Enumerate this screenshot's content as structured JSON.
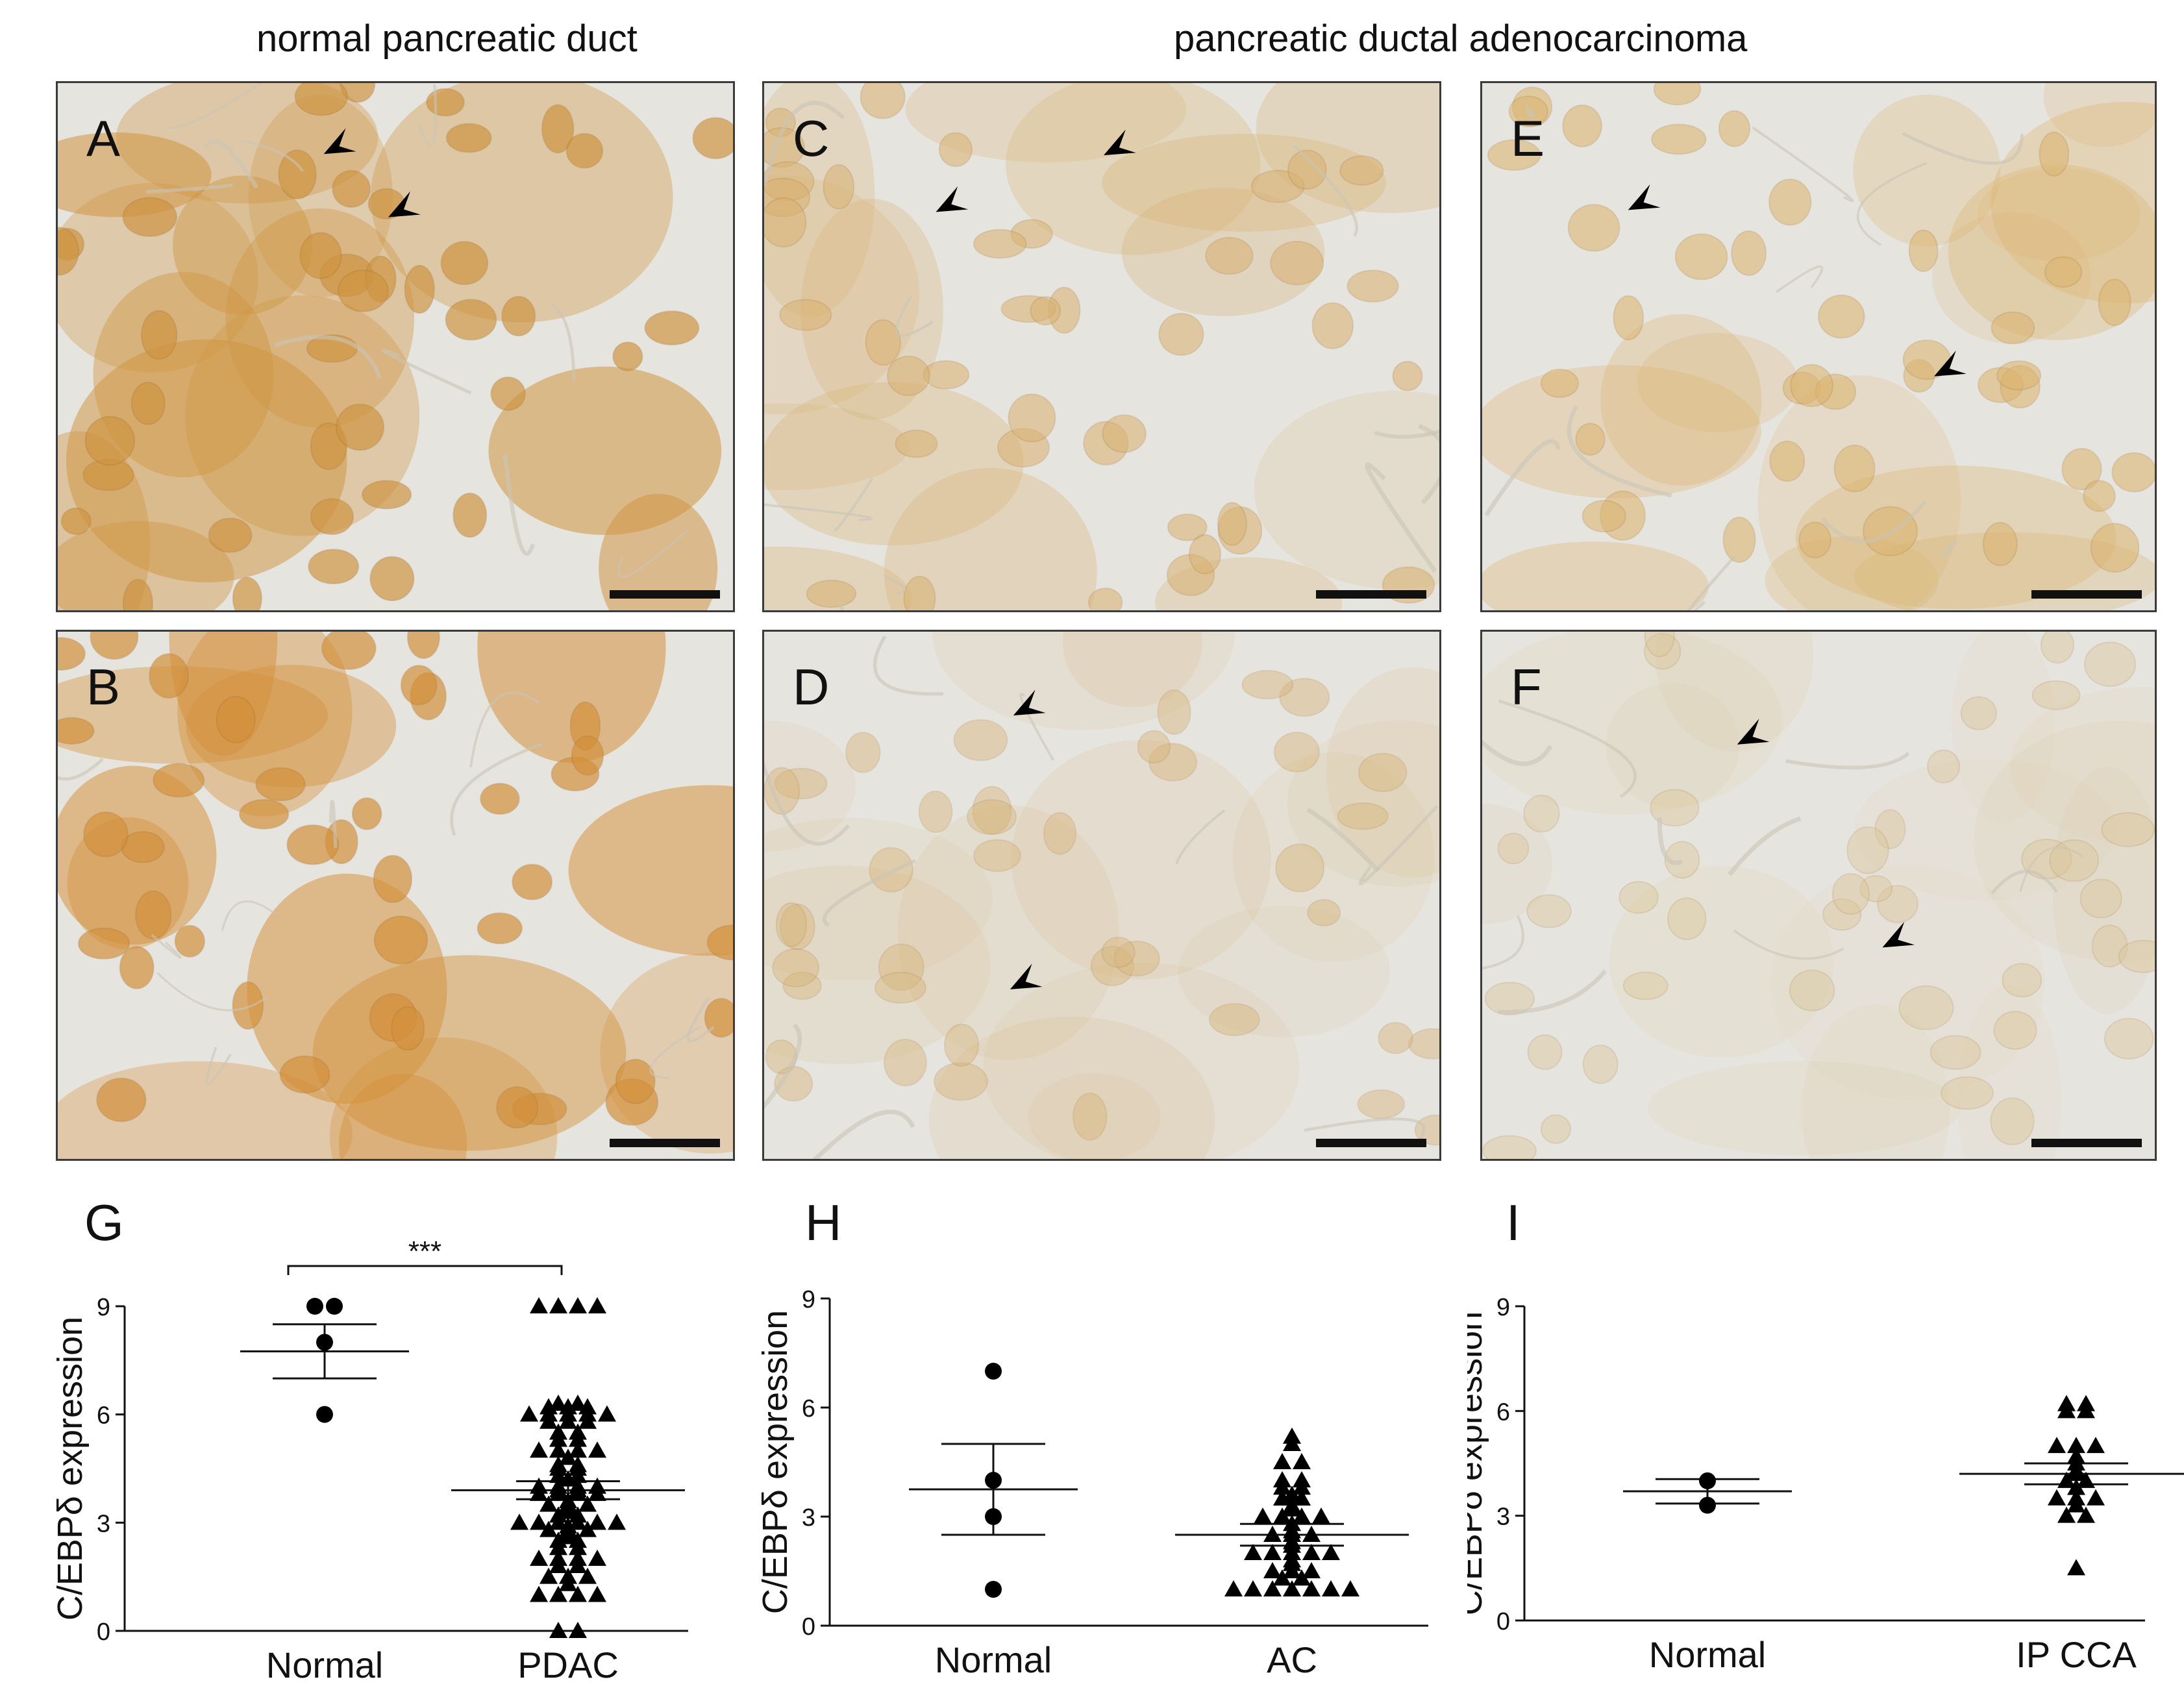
{
  "headers": {
    "normal": "normal pancreatic duct",
    "pdac": "pancreatic ductal adenocarcinoma"
  },
  "panels": [
    {
      "id": "a",
      "letter": "A",
      "stain": "strong",
      "tone": "#cf9440"
    },
    {
      "id": "b",
      "letter": "B",
      "stain": "strong",
      "tone": "#d4903a"
    },
    {
      "id": "c",
      "letter": "C",
      "stain": "moderate",
      "tone": "#d9b272"
    },
    {
      "id": "d",
      "letter": "D",
      "stain": "weak",
      "tone": "#d8b67c"
    },
    {
      "id": "e",
      "letter": "E",
      "stain": "moderate",
      "tone": "#dcb46e"
    },
    {
      "id": "f",
      "letter": "F",
      "stain": "weak",
      "tone": "#dcc79b"
    }
  ],
  "colors": {
    "background_tissue": "#e6e4df",
    "marker": "#000000",
    "scalebar": "#111111"
  },
  "chart_data": [
    {
      "panel": "G",
      "type": "scatter",
      "ylabel": "C/EBPδ expression",
      "ylim": [
        0,
        9
      ],
      "yticks": [
        "0",
        "3",
        "6",
        "9"
      ],
      "categories": [
        "Normal",
        "PDAC"
      ],
      "significance": "***",
      "series": [
        {
          "category": "Normal",
          "marker": "circle",
          "mean": 7.75,
          "sem_low": 7.0,
          "sem_high": 8.5,
          "values": [
            9,
            9,
            8,
            6
          ]
        },
        {
          "category": "PDAC",
          "marker": "triangle",
          "mean": 3.9,
          "sem_low": 3.65,
          "sem_high": 4.15,
          "values": [
            9,
            9,
            9,
            9,
            6.3,
            6.3,
            6.2,
            6.2,
            6.2,
            6,
            6,
            6,
            6,
            6,
            5.8,
            5.8,
            5.8,
            5.5,
            5.5,
            5.3,
            5.3,
            5,
            5,
            5,
            5,
            4.8,
            4.6,
            4.6,
            4.5,
            4.5,
            4.3,
            4.3,
            4.2,
            4,
            4,
            4,
            4,
            3.9,
            3.9,
            3.8,
            3.8,
            3.8,
            3.8,
            3.6,
            3.5,
            3.5,
            3.5,
            3.4,
            3.3,
            3.2,
            3.2,
            3,
            3,
            3,
            3,
            3,
            3,
            2.9,
            2.8,
            2.8,
            2.8,
            2.7,
            2.6,
            2.5,
            2.5,
            2.3,
            2.3,
            2,
            2,
            2,
            2,
            1.8,
            1.8,
            1.5,
            1.5,
            1.5,
            1.3,
            1,
            1,
            1,
            1,
            0,
            0
          ]
        }
      ]
    },
    {
      "panel": "H",
      "type": "scatter",
      "ylabel": "C/EBPδ expression",
      "ylim": [
        0,
        9
      ],
      "yticks": [
        "0",
        "3",
        "6",
        "9"
      ],
      "categories": [
        "Normal",
        "AC"
      ],
      "series": [
        {
          "category": "Normal",
          "marker": "circle",
          "mean": 3.75,
          "sem_low": 2.5,
          "sem_high": 5.0,
          "values": [
            7,
            4,
            3,
            1
          ]
        },
        {
          "category": "AC",
          "marker": "triangle",
          "mean": 2.5,
          "sem_low": 2.2,
          "sem_high": 2.8,
          "values": [
            5.2,
            5,
            4.5,
            4.5,
            4,
            4,
            3.8,
            3.8,
            3.6,
            3.5,
            3.5,
            3.3,
            3.2,
            3,
            3,
            3,
            3,
            2.8,
            2.6,
            2.5,
            2.5,
            2.5,
            2.3,
            2.2,
            2,
            2,
            2,
            2,
            2,
            1.8,
            1.7,
            1.5,
            1.5,
            1.5,
            1.3,
            1.3,
            1,
            1,
            1,
            1,
            1,
            1,
            1
          ]
        }
      ]
    },
    {
      "panel": "I",
      "type": "scatter",
      "ylabel": "C/EBPδ expression",
      "ylim": [
        0,
        9
      ],
      "yticks": [
        "0",
        "3",
        "6",
        "9"
      ],
      "categories": [
        "Normal",
        "IP CCA"
      ],
      "series": [
        {
          "category": "Normal",
          "marker": "circle",
          "mean": 3.7,
          "sem_low": 3.35,
          "sem_high": 4.05,
          "values": [
            4,
            3.3
          ]
        },
        {
          "category": "IP CCA",
          "marker": "triangle",
          "mean": 4.2,
          "sem_low": 3.9,
          "sem_high": 4.5,
          "values": [
            6.2,
            6.2,
            6,
            6,
            5,
            5,
            5,
            4.7,
            4.5,
            4.3,
            4.2,
            4,
            4,
            3.8,
            3.5,
            3.5,
            3.5,
            3.3,
            3,
            3,
            1.5
          ]
        }
      ]
    }
  ]
}
